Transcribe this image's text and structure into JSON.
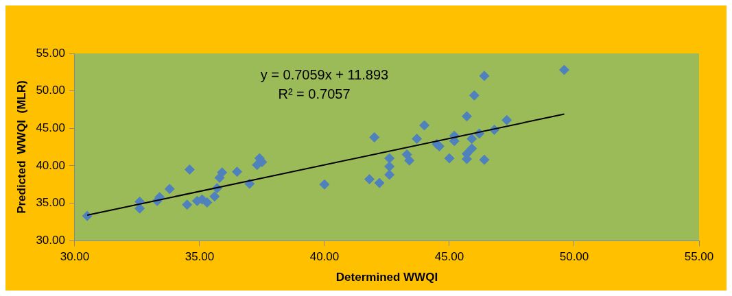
{
  "chart_data": {
    "type": "scatter",
    "xlabel": "Determined WWQI",
    "ylabel": "Predicted  WWQI  (MLR)",
    "marker": "diamond",
    "grid": false,
    "legend": false,
    "xlim": [
      30,
      55
    ],
    "xticks": [
      {
        "value": 30,
        "label": "30.00"
      },
      {
        "value": 35,
        "label": "35.00"
      },
      {
        "value": 40,
        "label": "40.00"
      },
      {
        "value": 45,
        "label": "45.00"
      },
      {
        "value": 50,
        "label": "50.00"
      },
      {
        "value": 55,
        "label": "55.00"
      }
    ],
    "ylim": [
      30,
      55
    ],
    "yticks": [
      {
        "value": 30,
        "label": "30.00"
      },
      {
        "value": 35,
        "label": "35.00"
      },
      {
        "value": 40,
        "label": "40.00"
      },
      {
        "value": 45,
        "label": "45.00"
      },
      {
        "value": 50,
        "label": "50.00"
      },
      {
        "value": 55,
        "label": "55.00"
      }
    ],
    "annotations": [
      "y = 0.7059x + 11.893",
      "R² = 0.7057"
    ],
    "series": [
      {
        "color": "#4f81bd",
        "x": [
          30.5,
          32.6,
          32.6,
          33.3,
          33.4,
          33.8,
          34.6,
          34.5,
          34.9,
          35.1,
          35.3,
          35.6,
          35.7,
          35.8,
          35.9,
          36.5,
          37.0,
          37.3,
          37.4,
          37.5,
          40.0,
          41.8,
          42.0,
          42.2,
          42.6,
          42.6,
          42.6,
          43.3,
          43.4,
          43.7,
          44.0,
          44.5,
          44.6,
          45.0,
          45.2,
          45.2,
          45.7,
          45.7,
          45.7,
          45.9,
          45.9,
          46.0,
          46.2,
          46.4,
          46.4,
          46.8,
          47.3,
          49.6
        ],
        "values": [
          33.3,
          35.2,
          34.3,
          35.3,
          35.8,
          36.9,
          39.5,
          34.8,
          35.3,
          35.5,
          35.1,
          35.9,
          37.0,
          38.4,
          39.1,
          39.2,
          37.6,
          40.1,
          41.0,
          40.5,
          37.5,
          38.2,
          43.8,
          37.7,
          41.0,
          39.9,
          38.8,
          41.5,
          40.7,
          43.6,
          45.4,
          42.9,
          42.6,
          41.0,
          43.3,
          44.0,
          46.6,
          40.9,
          41.6,
          42.3,
          43.6,
          49.4,
          44.3,
          40.8,
          52.0,
          44.8,
          46.1,
          52.8
        ]
      },
      {
        "type": "line",
        "color": "#000000",
        "marker": "none",
        "x": [
          30.5,
          49.6
        ],
        "values": [
          33.4,
          46.9
        ]
      }
    ]
  }
}
